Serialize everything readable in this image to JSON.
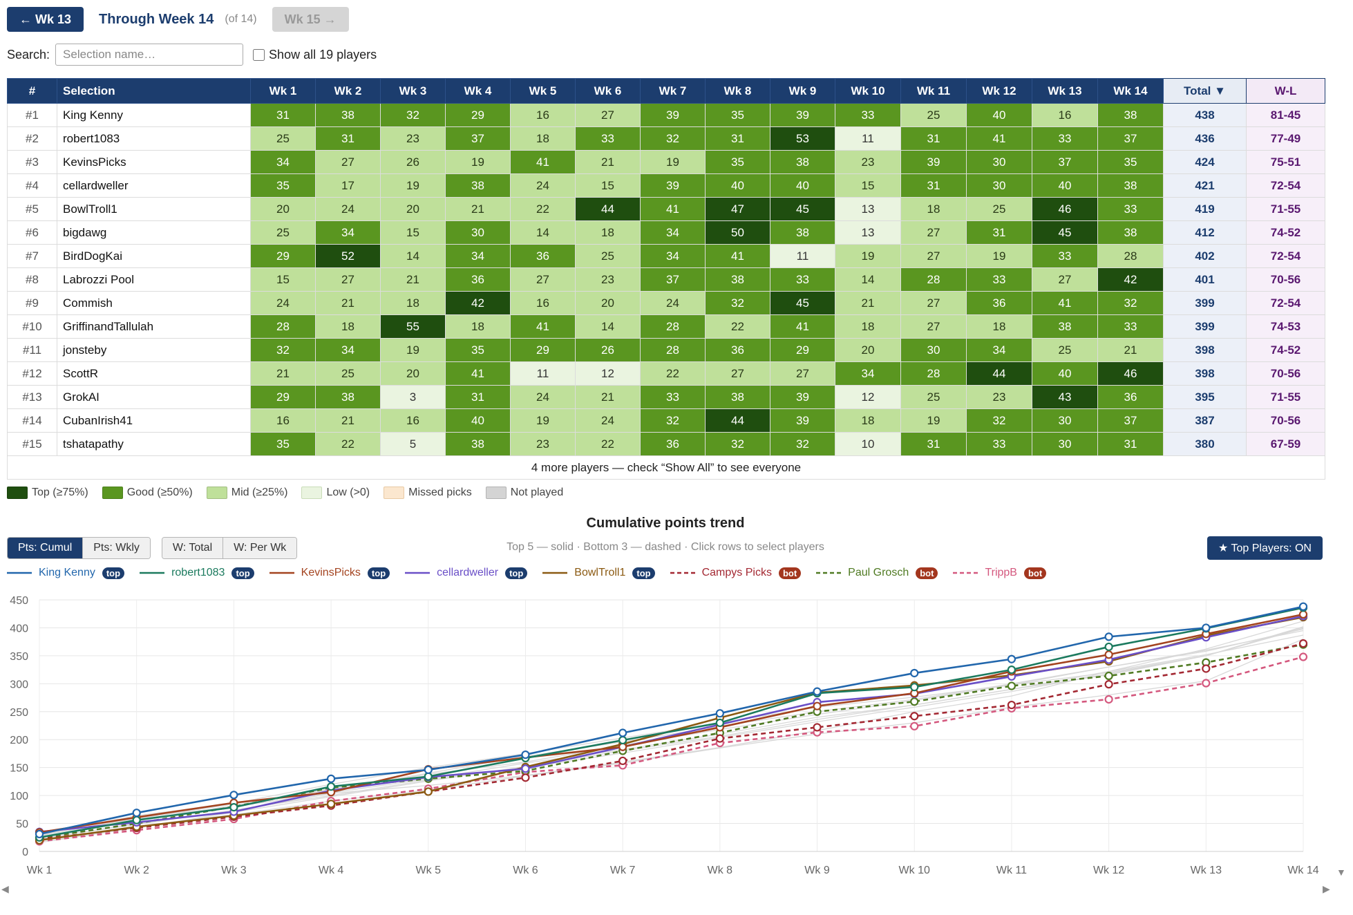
{
  "nav": {
    "prev": "← Wk 13",
    "title": "Through Week 14",
    "of": "(of 14)",
    "next": "Wk 15 →"
  },
  "search": {
    "label": "Search:",
    "placeholder": "Selection name…",
    "show_all": "Show all 19 players"
  },
  "table": {
    "headers": {
      "rank": "#",
      "selection": "Selection",
      "weeks": [
        "Wk 1",
        "Wk 2",
        "Wk 3",
        "Wk 4",
        "Wk 5",
        "Wk 6",
        "Wk 7",
        "Wk 8",
        "Wk 9",
        "Wk 10",
        "Wk 11",
        "Wk 12",
        "Wk 13",
        "Wk 14"
      ],
      "total": "Total ▼",
      "wl": "W-L"
    },
    "rows": [
      {
        "rank": "#1",
        "name": "King Kenny",
        "scores": [
          31,
          38,
          32,
          29,
          16,
          27,
          39,
          35,
          39,
          33,
          25,
          40,
          16,
          38
        ],
        "total": "438",
        "wl": "81-45"
      },
      {
        "rank": "#2",
        "name": "robert1083",
        "scores": [
          25,
          31,
          23,
          37,
          18,
          33,
          32,
          31,
          53,
          11,
          31,
          41,
          33,
          37
        ],
        "total": "436",
        "wl": "77-49"
      },
      {
        "rank": "#3",
        "name": "KevinsPicks",
        "scores": [
          34,
          27,
          26,
          19,
          41,
          21,
          19,
          35,
          38,
          23,
          39,
          30,
          37,
          35
        ],
        "total": "424",
        "wl": "75-51"
      },
      {
        "rank": "#4",
        "name": "cellardweller",
        "scores": [
          35,
          17,
          19,
          38,
          24,
          15,
          39,
          40,
          40,
          15,
          31,
          30,
          40,
          38
        ],
        "total": "421",
        "wl": "72-54"
      },
      {
        "rank": "#5",
        "name": "BowlTroll1",
        "scores": [
          20,
          24,
          20,
          21,
          22,
          44,
          41,
          47,
          45,
          13,
          18,
          25,
          46,
          33
        ],
        "total": "419",
        "wl": "71-55"
      },
      {
        "rank": "#6",
        "name": "bigdawg",
        "scores": [
          25,
          34,
          15,
          30,
          14,
          18,
          34,
          50,
          38,
          13,
          27,
          31,
          45,
          38
        ],
        "total": "412",
        "wl": "74-52"
      },
      {
        "rank": "#7",
        "name": "BirdDogKai",
        "scores": [
          29,
          52,
          14,
          34,
          36,
          25,
          34,
          41,
          11,
          19,
          27,
          19,
          33,
          28
        ],
        "total": "402",
        "wl": "72-54"
      },
      {
        "rank": "#8",
        "name": "Labrozzi Pool",
        "scores": [
          15,
          27,
          21,
          36,
          27,
          23,
          37,
          38,
          33,
          14,
          28,
          33,
          27,
          42
        ],
        "total": "401",
        "wl": "70-56"
      },
      {
        "rank": "#9",
        "name": "Commish",
        "scores": [
          24,
          21,
          18,
          42,
          16,
          20,
          24,
          32,
          45,
          21,
          27,
          36,
          41,
          32
        ],
        "total": "399",
        "wl": "72-54"
      },
      {
        "rank": "#10",
        "name": "GriffinandTallulah",
        "scores": [
          28,
          18,
          55,
          18,
          41,
          14,
          28,
          22,
          41,
          18,
          27,
          18,
          38,
          33
        ],
        "total": "399",
        "wl": "74-53"
      },
      {
        "rank": "#11",
        "name": "jonsteby",
        "scores": [
          32,
          34,
          19,
          35,
          29,
          26,
          28,
          36,
          29,
          20,
          30,
          34,
          25,
          21
        ],
        "total": "398",
        "wl": "74-52"
      },
      {
        "rank": "#12",
        "name": "ScottR",
        "scores": [
          21,
          25,
          20,
          41,
          11,
          12,
          22,
          27,
          27,
          34,
          28,
          44,
          40,
          46
        ],
        "total": "398",
        "wl": "70-56"
      },
      {
        "rank": "#13",
        "name": "GrokAI",
        "scores": [
          29,
          38,
          3,
          31,
          24,
          21,
          33,
          38,
          39,
          12,
          25,
          23,
          43,
          36
        ],
        "total": "395",
        "wl": "71-55"
      },
      {
        "rank": "#14",
        "name": "CubanIrish41",
        "scores": [
          16,
          21,
          16,
          40,
          19,
          24,
          32,
          44,
          39,
          18,
          19,
          32,
          30,
          37
        ],
        "total": "387",
        "wl": "70-56"
      },
      {
        "rank": "#15",
        "name": "tshatapathy",
        "scores": [
          35,
          22,
          5,
          38,
          23,
          22,
          36,
          32,
          32,
          10,
          31,
          33,
          30,
          31
        ],
        "total": "380",
        "wl": "67-59"
      }
    ],
    "more": "4 more players — check “Show All” to see everyone",
    "level_map": [
      [
        "c-good",
        "c-good",
        "c-good",
        "c-good",
        "c-mid",
        "c-mid",
        "c-good",
        "c-good",
        "c-good",
        "c-good",
        "c-mid",
        "c-good",
        "c-mid",
        "c-good"
      ],
      [
        "c-mid",
        "c-good",
        "c-mid",
        "c-good",
        "c-mid",
        "c-good",
        "c-good",
        "c-good",
        "c-top",
        "c-low",
        "c-good",
        "c-good",
        "c-good",
        "c-good"
      ],
      [
        "c-good",
        "c-mid",
        "c-mid",
        "c-mid",
        "c-good",
        "c-mid",
        "c-mid",
        "c-good",
        "c-good",
        "c-mid",
        "c-good",
        "c-good",
        "c-good",
        "c-good"
      ],
      [
        "c-good",
        "c-mid",
        "c-mid",
        "c-good",
        "c-mid",
        "c-mid",
        "c-good",
        "c-good",
        "c-good",
        "c-mid",
        "c-good",
        "c-good",
        "c-good",
        "c-good"
      ],
      [
        "c-mid",
        "c-mid",
        "c-mid",
        "c-mid",
        "c-mid",
        "c-top",
        "c-good",
        "c-top",
        "c-top",
        "c-low",
        "c-mid",
        "c-mid",
        "c-top",
        "c-good"
      ],
      [
        "c-mid",
        "c-good",
        "c-mid",
        "c-good",
        "c-mid",
        "c-mid",
        "c-good",
        "c-top",
        "c-good",
        "c-low",
        "c-mid",
        "c-good",
        "c-top",
        "c-good"
      ],
      [
        "c-good",
        "c-top",
        "c-mid",
        "c-good",
        "c-good",
        "c-mid",
        "c-good",
        "c-good",
        "c-low",
        "c-mid",
        "c-mid",
        "c-mid",
        "c-good",
        "c-mid"
      ],
      [
        "c-mid",
        "c-mid",
        "c-mid",
        "c-good",
        "c-mid",
        "c-mid",
        "c-good",
        "c-good",
        "c-good",
        "c-mid",
        "c-good",
        "c-good",
        "c-mid",
        "c-top"
      ],
      [
        "c-mid",
        "c-mid",
        "c-mid",
        "c-top",
        "c-mid",
        "c-mid",
        "c-mid",
        "c-good",
        "c-top",
        "c-mid",
        "c-mid",
        "c-good",
        "c-good",
        "c-good"
      ],
      [
        "c-good",
        "c-mid",
        "c-top",
        "c-mid",
        "c-good",
        "c-mid",
        "c-good",
        "c-mid",
        "c-good",
        "c-mid",
        "c-mid",
        "c-mid",
        "c-good",
        "c-good"
      ],
      [
        "c-good",
        "c-good",
        "c-mid",
        "c-good",
        "c-good",
        "c-good",
        "c-good",
        "c-good",
        "c-good",
        "c-mid",
        "c-good",
        "c-good",
        "c-mid",
        "c-mid"
      ],
      [
        "c-mid",
        "c-mid",
        "c-mid",
        "c-good",
        "c-low",
        "c-low",
        "c-mid",
        "c-mid",
        "c-mid",
        "c-good",
        "c-good",
        "c-top",
        "c-good",
        "c-top"
      ],
      [
        "c-good",
        "c-good",
        "c-low",
        "c-good",
        "c-mid",
        "c-mid",
        "c-good",
        "c-good",
        "c-good",
        "c-low",
        "c-mid",
        "c-mid",
        "c-top",
        "c-good"
      ],
      [
        "c-mid",
        "c-mid",
        "c-mid",
        "c-good",
        "c-mid",
        "c-mid",
        "c-good",
        "c-top",
        "c-good",
        "c-mid",
        "c-mid",
        "c-good",
        "c-good",
        "c-good"
      ],
      [
        "c-good",
        "c-mid",
        "c-low",
        "c-good",
        "c-mid",
        "c-mid",
        "c-good",
        "c-good",
        "c-good",
        "c-low",
        "c-good",
        "c-good",
        "c-good",
        "c-good"
      ]
    ]
  },
  "legend": [
    {
      "label": "Top (≥75%)",
      "color": "#1f4e0f"
    },
    {
      "label": "Good (≥50%)",
      "color": "#5a9620"
    },
    {
      "label": "Mid (≥25%)",
      "color": "#bfe09a"
    },
    {
      "label": "Low (>0)",
      "color": "#eaf4e0"
    },
    {
      "label": "Missed picks",
      "color": "#fbe7cf"
    },
    {
      "label": "Not played",
      "color": "#d4d4d4"
    }
  ],
  "chart_controls": {
    "title": "Cumulative points trend",
    "pts_cumul": "Pts: Cumul",
    "pts_wkly": "Pts: Wkly",
    "w_total": "W: Total",
    "w_perwk": "W: Per Wk",
    "hint": "Top 5 — solid · Bottom 3 — dashed · Click rows to select players",
    "top_players": "★ Top Players: ON"
  },
  "chart_data": {
    "type": "line",
    "x": [
      "Wk 1",
      "Wk 2",
      "Wk 3",
      "Wk 4",
      "Wk 5",
      "Wk 6",
      "Wk 7",
      "Wk 8",
      "Wk 9",
      "Wk 10",
      "Wk 11",
      "Wk 12",
      "Wk 13",
      "Wk 14"
    ],
    "ylim": [
      0,
      450
    ],
    "yticks": [
      0,
      50,
      100,
      150,
      200,
      250,
      300,
      350,
      400,
      450
    ],
    "grid": true,
    "series": [
      {
        "name": "King Kenny",
        "badge": "top",
        "color": "#2166ac",
        "dashed": false,
        "values": [
          31,
          69,
          101,
          130,
          146,
          173,
          212,
          247,
          286,
          319,
          344,
          384,
          400,
          438
        ]
      },
      {
        "name": "robert1083",
        "badge": "top",
        "color": "#1b7a5e",
        "dashed": false,
        "values": [
          25,
          56,
          79,
          116,
          134,
          167,
          199,
          230,
          283,
          294,
          325,
          366,
          399,
          436
        ]
      },
      {
        "name": "KevinsPicks",
        "badge": "top",
        "color": "#a3431f",
        "dashed": false,
        "values": [
          34,
          61,
          87,
          106,
          147,
          168,
          187,
          222,
          260,
          283,
          322,
          352,
          389,
          424
        ]
      },
      {
        "name": "cellardweller",
        "badge": "top",
        "color": "#6a4fc7",
        "dashed": false,
        "values": [
          35,
          52,
          71,
          109,
          133,
          148,
          187,
          227,
          267,
          282,
          313,
          343,
          383,
          421
        ]
      },
      {
        "name": "BowlTroll1",
        "badge": "top",
        "color": "#8b5a12",
        "dashed": false,
        "values": [
          20,
          44,
          64,
          85,
          107,
          151,
          192,
          239,
          284,
          297,
          315,
          340,
          386,
          419
        ]
      },
      {
        "name": "Campys Picks",
        "badge": "bot",
        "color": "#a32832",
        "dashed": true,
        "values": [
          22,
          42,
          62,
          82,
          107,
          132,
          162,
          202,
          222,
          242,
          262,
          299,
          327,
          372
        ]
      },
      {
        "name": "Paul Grosch",
        "badge": "bot",
        "color": "#4f7a22",
        "dashed": true,
        "values": [
          24,
          50,
          80,
          114,
          130,
          144,
          180,
          212,
          250,
          268,
          296,
          314,
          338,
          370
        ]
      },
      {
        "name": "TrippB",
        "badge": "bot",
        "color": "#d4587e",
        "dashed": true,
        "values": [
          18,
          38,
          58,
          90,
          112,
          142,
          154,
          194,
          213,
          224,
          256,
          272,
          301,
          348
        ]
      }
    ],
    "background_series": [
      [
        28,
        60,
        80,
        105,
        130,
        158,
        182,
        210,
        240,
        262,
        290,
        316,
        350,
        399
      ],
      [
        26,
        55,
        82,
        112,
        138,
        160,
        190,
        218,
        245,
        270,
        298,
        330,
        358,
        398
      ],
      [
        24,
        48,
        74,
        100,
        128,
        150,
        176,
        204,
        232,
        258,
        286,
        318,
        350,
        401
      ],
      [
        29,
        58,
        85,
        110,
        140,
        170,
        196,
        224,
        250,
        272,
        300,
        330,
        360,
        395
      ],
      [
        16,
        42,
        70,
        98,
        126,
        152,
        180,
        206,
        236,
        262,
        290,
        322,
        352,
        387
      ],
      [
        30,
        64,
        86,
        120,
        150,
        175,
        203,
        230,
        258,
        276,
        298,
        320,
        350,
        402
      ],
      [
        22,
        50,
        72,
        104,
        118,
        136,
        160,
        186,
        216,
        250,
        278,
        322,
        362,
        412
      ],
      [
        20,
        44,
        66,
        90,
        110,
        135,
        158,
        185,
        210,
        230,
        258,
        280,
        305,
        380
      ]
    ]
  }
}
